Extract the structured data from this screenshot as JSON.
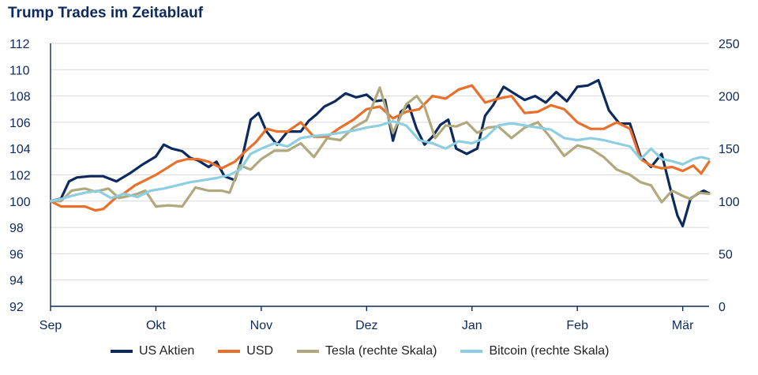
{
  "chart_data": {
    "type": "line",
    "title": "Trump Trades im Zeitablauf",
    "x_ticks": [
      "Sep",
      "Okt",
      "Nov",
      "Dez",
      "Jan",
      "Feb",
      "Mär"
    ],
    "x_range": [
      0,
      25
    ],
    "y_left": {
      "range": [
        92,
        112
      ],
      "ticks": [
        92,
        94,
        96,
        98,
        100,
        102,
        104,
        106,
        108,
        110,
        112
      ]
    },
    "y_right": {
      "range": [
        0,
        250
      ],
      "ticks": [
        0,
        50,
        100,
        150,
        200,
        250
      ]
    },
    "grid": true,
    "legend_position": "bottom",
    "series": [
      {
        "name": "US Aktien",
        "axis": "left",
        "color": "#0d2a5e",
        "x": [
          0,
          0.4,
          0.7,
          1.0,
          1.5,
          2.0,
          2.5,
          3.0,
          3.5,
          4.0,
          4.3,
          4.6,
          5.0,
          5.3,
          5.6,
          6.0,
          6.3,
          6.6,
          7.0,
          7.3,
          7.6,
          7.9,
          8.2,
          8.6,
          9.0,
          9.5,
          9.8,
          10.1,
          10.4,
          10.8,
          11.2,
          11.6,
          12.0,
          12.3,
          12.7,
          13.0,
          13.3,
          13.6,
          13.9,
          14.2,
          14.5,
          14.8,
          15.1,
          15.4,
          15.8,
          16.2,
          16.5,
          16.8,
          17.2,
          17.6,
          18.0,
          18.4,
          18.8,
          19.2,
          19.6,
          20.0,
          20.4,
          20.8,
          21.2,
          21.6,
          22.0,
          22.4,
          22.8,
          23.2,
          23.6,
          23.8,
          24.0,
          24.3,
          24.6,
          24.8,
          25.0
        ],
        "y": [
          100.0,
          100.2,
          101.5,
          101.8,
          101.9,
          101.9,
          101.5,
          102.1,
          102.8,
          103.4,
          104.3,
          104.0,
          103.8,
          103.3,
          103.1,
          102.6,
          103.0,
          101.9,
          101.6,
          103.5,
          106.2,
          106.7,
          105.3,
          104.3,
          105.3,
          105.3,
          106.1,
          106.6,
          107.2,
          107.6,
          108.2,
          107.9,
          108.1,
          107.6,
          107.7,
          104.6,
          106.8,
          107.3,
          105.5,
          104.3,
          104.9,
          105.8,
          106.2,
          104.0,
          103.6,
          104.0,
          106.5,
          107.3,
          108.7,
          108.2,
          107.7,
          108.0,
          107.5,
          108.3,
          107.6,
          108.7,
          108.8,
          109.2,
          106.9,
          105.9,
          105.9,
          103.4,
          102.6,
          103.6,
          100.4,
          98.9,
          98.1,
          100.2,
          100.6,
          100.8,
          100.6
        ]
      },
      {
        "name": "USD",
        "axis": "left",
        "color": "#e8702a",
        "x": [
          0,
          0.4,
          0.8,
          1.3,
          1.7,
          2.0,
          2.5,
          2.8,
          3.2,
          3.6,
          4.0,
          4.4,
          4.8,
          5.2,
          5.6,
          6.0,
          6.5,
          7.0,
          7.4,
          7.8,
          8.2,
          8.6,
          9.0,
          9.5,
          10.0,
          10.5,
          11.0,
          11.5,
          12.0,
          12.5,
          13.0,
          13.5,
          14.0,
          14.5,
          15.0,
          15.5,
          16.0,
          16.5,
          17.0,
          17.5,
          18.0,
          18.5,
          19.0,
          19.5,
          20.0,
          20.5,
          21.0,
          21.5,
          22.0,
          22.4,
          22.8,
          23.2,
          23.6,
          24.0,
          24.4,
          24.7,
          25.0
        ],
        "y": [
          100.0,
          99.6,
          99.6,
          99.6,
          99.3,
          99.4,
          100.3,
          100.6,
          101.2,
          101.6,
          102.0,
          102.5,
          103.0,
          103.2,
          103.2,
          103.0,
          102.5,
          103.0,
          103.8,
          104.5,
          105.5,
          105.3,
          105.3,
          106.0,
          104.9,
          104.9,
          105.6,
          106.2,
          107.0,
          107.2,
          106.3,
          106.8,
          107.0,
          108.0,
          107.8,
          108.5,
          108.8,
          107.5,
          107.8,
          108.0,
          106.7,
          106.8,
          107.3,
          107.0,
          106.0,
          105.5,
          105.5,
          106.0,
          105.5,
          103.2,
          102.7,
          102.5,
          102.6,
          102.3,
          102.7,
          102.1,
          103.0
        ]
      },
      {
        "name": "Tesla (rechte Skala)",
        "axis": "right",
        "color": "#b0a97e",
        "x": [
          0,
          0.4,
          0.8,
          1.3,
          1.7,
          2.2,
          2.6,
          3.0,
          3.3,
          3.6,
          4.0,
          4.5,
          5.0,
          5.5,
          6.0,
          6.5,
          6.8,
          7.2,
          7.6,
          8.0,
          8.5,
          9.0,
          9.5,
          10.0,
          10.5,
          11.0,
          11.5,
          12.0,
          12.5,
          13.0,
          13.5,
          13.9,
          14.2,
          14.6,
          15.0,
          15.4,
          15.8,
          16.2,
          16.6,
          17.0,
          17.5,
          18.0,
          18.5,
          19.0,
          19.5,
          20.0,
          20.5,
          21.0,
          21.5,
          22.0,
          22.4,
          22.8,
          23.2,
          23.6,
          24.0,
          24.3,
          24.6,
          25.0
        ],
        "y": [
          100,
          100,
          110,
          112,
          109,
          112,
          103,
          105,
          107,
          110,
          95,
          96,
          95,
          113,
          110,
          110,
          108,
          134,
          130,
          140,
          148,
          148,
          155,
          142,
          160,
          158,
          170,
          177,
          208,
          165,
          192,
          200,
          190,
          160,
          172,
          171,
          175,
          165,
          170,
          171,
          160,
          170,
          175,
          160,
          143,
          153,
          150,
          142,
          130,
          125,
          118,
          115,
          99,
          110,
          105,
          102,
          108,
          107
        ]
      },
      {
        "name": "Bitcoin (rechte Skala)",
        "axis": "right",
        "color": "#8dcfe0",
        "x": [
          0,
          0.4,
          0.8,
          1.3,
          1.8,
          2.3,
          2.8,
          3.3,
          3.8,
          4.3,
          4.8,
          5.3,
          5.8,
          6.3,
          6.8,
          7.2,
          7.6,
          8.0,
          8.5,
          9.0,
          9.5,
          10.0,
          10.5,
          11.0,
          11.5,
          12.0,
          12.5,
          13.0,
          13.5,
          14.0,
          14.5,
          15.0,
          15.5,
          16.0,
          16.5,
          17.0,
          17.5,
          18.0,
          18.5,
          19.0,
          19.5,
          20.0,
          20.5,
          21.0,
          21.5,
          22.0,
          22.4,
          22.8,
          23.2,
          23.6,
          24.0,
          24.4,
          24.7,
          25.0
        ],
        "y": [
          100,
          102,
          105,
          108,
          110,
          103,
          107,
          104,
          110,
          112,
          115,
          118,
          120,
          122,
          125,
          130,
          145,
          150,
          155,
          152,
          160,
          162,
          163,
          165,
          167,
          170,
          172,
          176,
          172,
          158,
          155,
          150,
          157,
          155,
          160,
          172,
          174,
          172,
          170,
          168,
          160,
          158,
          160,
          158,
          155,
          152,
          140,
          150,
          140,
          138,
          135,
          140,
          142,
          140
        ]
      }
    ]
  }
}
